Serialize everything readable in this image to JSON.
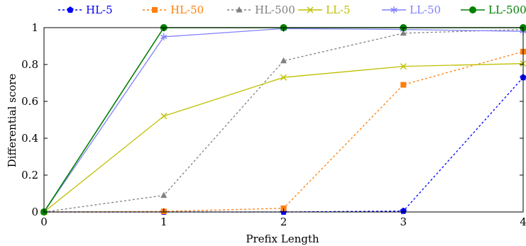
{
  "chart_data": {
    "type": "line",
    "xlabel": "Prefix Length",
    "ylabel": "Differential score",
    "x": [
      0,
      1,
      2,
      3,
      4
    ],
    "xlim": [
      0,
      4
    ],
    "ylim": [
      0,
      1
    ],
    "xticks": [
      "0",
      "1",
      "2",
      "3",
      "4"
    ],
    "yticks": [
      "0",
      "0.2",
      "0.4",
      "0.6",
      "0.8",
      "1"
    ],
    "grid": false,
    "legend_position": "top",
    "series": [
      {
        "name": "HL-5",
        "values": [
          0,
          0.0,
          0.0,
          0.005,
          0.73
        ],
        "color": "#0000ff",
        "marker": "pentagon",
        "dash": "dotted"
      },
      {
        "name": "HL-50",
        "values": [
          0,
          0.003,
          0.02,
          0.69,
          0.87
        ],
        "color": "#ff7f0e",
        "marker": "square",
        "dash": "dotted"
      },
      {
        "name": "HL-500",
        "values": [
          0,
          0.09,
          0.82,
          0.97,
          0.99
        ],
        "color": "#808080",
        "marker": "triangle",
        "dash": "dotted"
      },
      {
        "name": "LL-5",
        "values": [
          0,
          0.52,
          0.73,
          0.79,
          0.805
        ],
        "color": "#bfbf00",
        "marker": "x",
        "dash": "solid"
      },
      {
        "name": "LL-50",
        "values": [
          0,
          0.95,
          0.995,
          0.99,
          0.98
        ],
        "color": "#8080ff",
        "marker": "asterisk",
        "dash": "solid"
      },
      {
        "name": "LL-500",
        "values": [
          0,
          1.0,
          1.0,
          1.0,
          1.0
        ],
        "color": "#008000",
        "marker": "circle",
        "dash": "solid"
      }
    ]
  }
}
